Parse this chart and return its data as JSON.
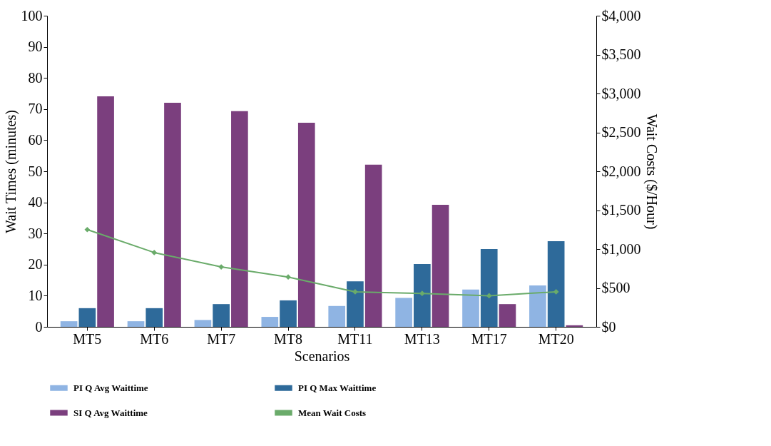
{
  "chart_data": {
    "type": "bar",
    "xlabel": "Scenarios",
    "ylabel": "Wait Times (minutes)",
    "y2label": "Wait Costs ($/Hour)",
    "categories": [
      "MT5",
      "MT6",
      "MT7",
      "MT8",
      "MT11",
      "MT13",
      "MT17",
      "MT20"
    ],
    "series": [
      {
        "name": "PI Q Avg Waittime",
        "color": "#8fb4e3",
        "values": [
          1.8,
          1.8,
          2.2,
          3.2,
          6.7,
          9.3,
          12,
          13.3
        ]
      },
      {
        "name": "PI Q Max Waittime",
        "color": "#2e6a9a",
        "values": [
          6,
          6,
          7.3,
          8.5,
          14.6,
          20.2,
          25,
          27.5
        ]
      },
      {
        "name": "SI Q Avg Waittime",
        "color": "#7b3f7e",
        "values": [
          74.1,
          72,
          69.3,
          65.6,
          52.1,
          39.2,
          7.3,
          0.5
        ]
      },
      {
        "name": "Mean Wait Costs",
        "color": "#6aab6a",
        "type": "line",
        "axis": "y2",
        "values": [
          1250,
          955,
          770,
          640,
          450,
          430,
          400,
          450
        ]
      }
    ],
    "ylim": [
      0,
      100
    ],
    "yticks": [
      0,
      10,
      20,
      30,
      40,
      50,
      60,
      70,
      80,
      90,
      100
    ],
    "y2lim": [
      0,
      4000
    ],
    "y2ticks": [
      {
        "value": 0,
        "label": "$0"
      },
      {
        "value": 500,
        "label": "$500"
      },
      {
        "value": 1000,
        "label": "$1,000"
      },
      {
        "value": 1500,
        "label": "$1,500"
      },
      {
        "value": 2000,
        "label": "$2,000"
      },
      {
        "value": 2500,
        "label": "$2,500"
      },
      {
        "value": 3000,
        "label": "$3,000"
      },
      {
        "value": 3500,
        "label": "$3,500"
      },
      {
        "value": 4000,
        "label": "$4,000"
      }
    ],
    "legend": "bottom",
    "marker": "diamond",
    "line_style": "solid"
  }
}
